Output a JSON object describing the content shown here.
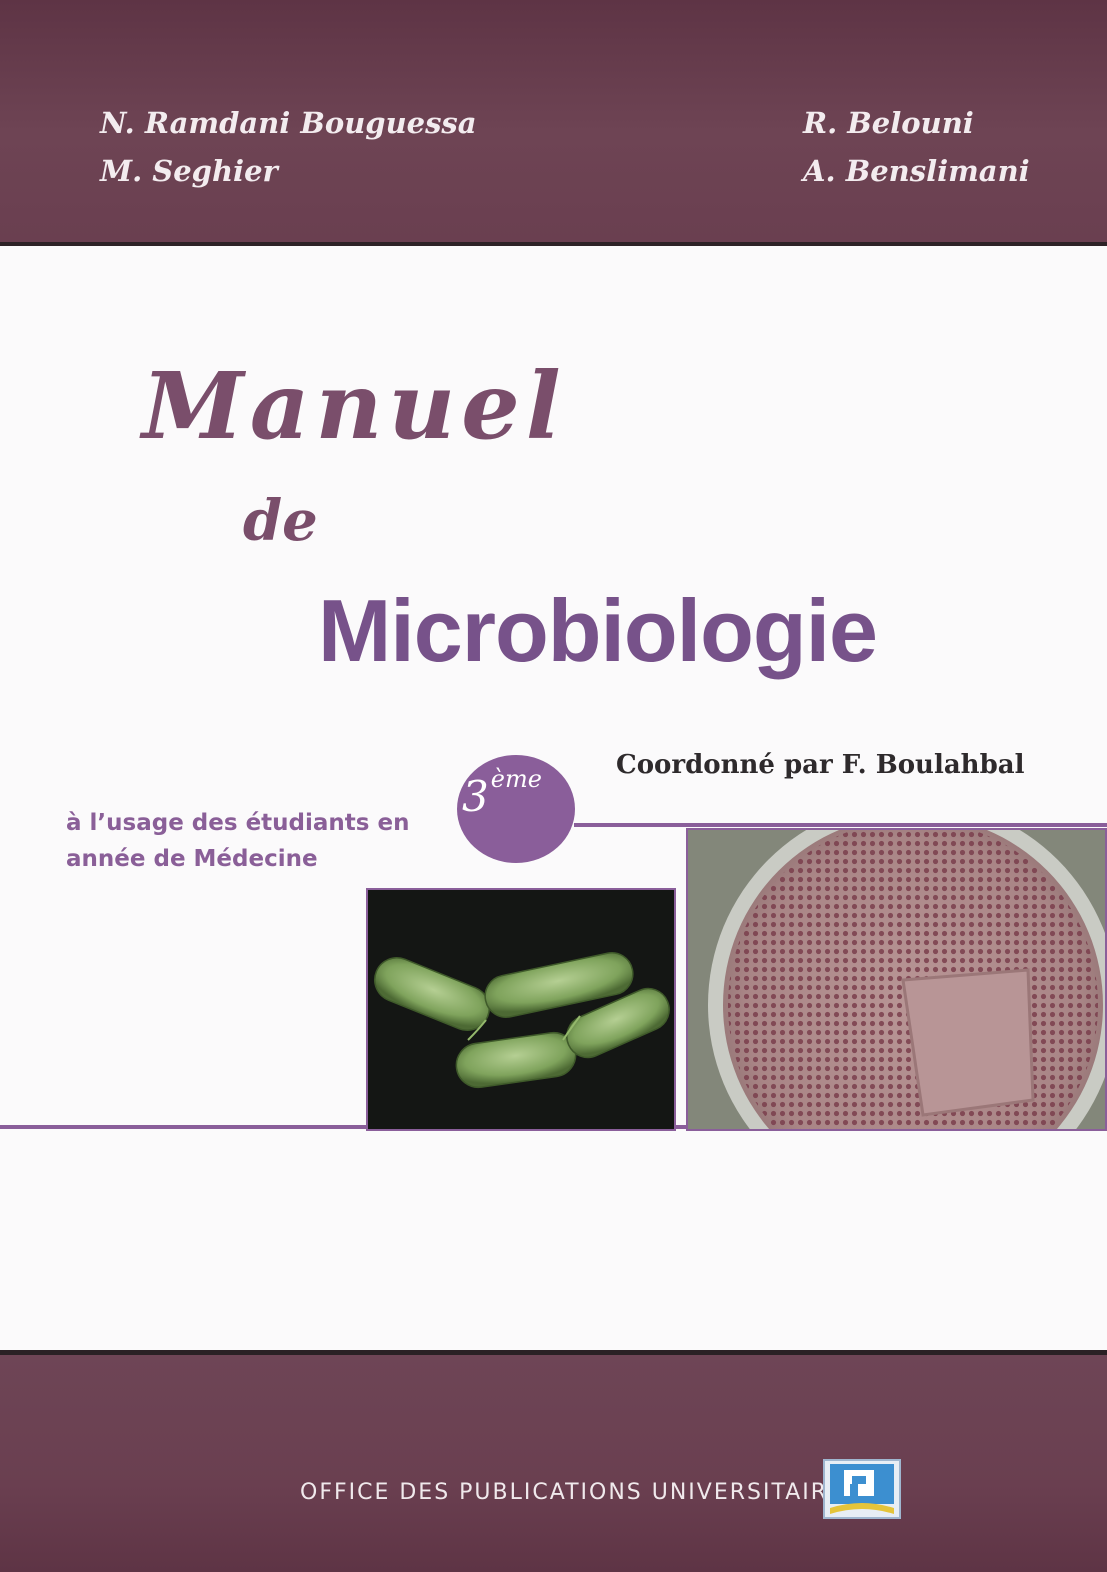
{
  "authors": {
    "left": [
      "N. Ramdani Bouguessa",
      "M. Seghier"
    ],
    "right": [
      "R. Belouni",
      "A. Benslimani"
    ]
  },
  "title": {
    "line1": "Manuel",
    "line2": "de",
    "line3": "Microbiologie"
  },
  "coordinator": "Coordonné par  F. Boulahbal",
  "audience": {
    "line1": "à l’usage des étudiants en",
    "line2": "année de Médecine"
  },
  "year_badge": {
    "number": "3",
    "suffix": "ème"
  },
  "publisher": "OFFICE DES PUBLICATIONS UNIVERSITAIRES",
  "colors": {
    "band": "#6a3f50",
    "title_accent": "#77528a",
    "badge": "#8a5e9a"
  }
}
